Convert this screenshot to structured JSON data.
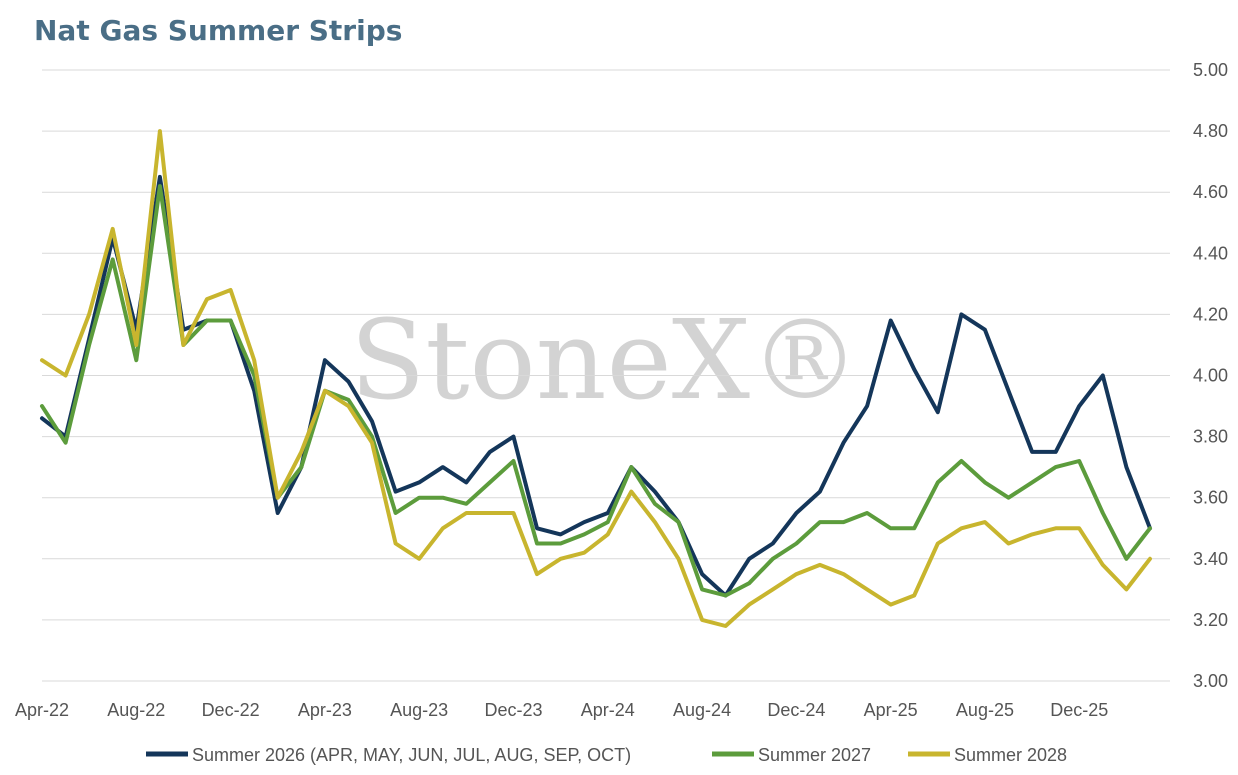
{
  "chart_data": {
    "type": "line",
    "title": "Nat Gas Summer Strips",
    "xlabel": "",
    "ylabel": "",
    "ylim": [
      3.0,
      5.0
    ],
    "y_ticks": [
      "3.00",
      "3.20",
      "3.40",
      "3.60",
      "3.80",
      "4.00",
      "4.20",
      "4.40",
      "4.60",
      "4.80",
      "5.00"
    ],
    "x_tick_labels": [
      "Apr-22",
      "Aug-22",
      "Dec-22",
      "Apr-23",
      "Aug-23",
      "Dec-23",
      "Apr-24",
      "Aug-24",
      "Dec-24",
      "Apr-25",
      "Aug-25",
      "Dec-25"
    ],
    "x_range": [
      "2022-04",
      "2026-03"
    ],
    "grid": "horizontal",
    "legend_position": "bottom",
    "watermark": "StoneX®",
    "x": [
      "2022-04",
      "2022-05",
      "2022-06",
      "2022-07",
      "2022-08",
      "2022-09",
      "2022-10",
      "2022-11",
      "2022-12",
      "2023-01",
      "2023-02",
      "2023-03",
      "2023-04",
      "2023-05",
      "2023-06",
      "2023-07",
      "2023-08",
      "2023-09",
      "2023-10",
      "2023-11",
      "2023-12",
      "2024-01",
      "2024-02",
      "2024-03",
      "2024-04",
      "2024-05",
      "2024-06",
      "2024-07",
      "2024-08",
      "2024-09",
      "2024-10",
      "2024-11",
      "2024-12",
      "2025-01",
      "2025-02",
      "2025-03",
      "2025-04",
      "2025-05",
      "2025-06",
      "2025-07",
      "2025-08",
      "2025-09",
      "2025-10",
      "2025-11",
      "2025-12",
      "2026-01",
      "2026-02",
      "2026-03"
    ],
    "series": [
      {
        "name": "Summer 2026 (APR, MAY, JUN, JUL, AUG, SEP, OCT)",
        "color": "#14365a",
        "values": [
          3.86,
          3.8,
          4.12,
          4.45,
          4.15,
          4.65,
          4.15,
          4.18,
          4.18,
          3.95,
          3.55,
          3.7,
          4.05,
          3.98,
          3.85,
          3.62,
          3.65,
          3.7,
          3.65,
          3.75,
          3.8,
          3.5,
          3.48,
          3.52,
          3.55,
          3.7,
          3.62,
          3.52,
          3.35,
          3.28,
          3.4,
          3.45,
          3.55,
          3.62,
          3.78,
          3.9,
          4.18,
          4.02,
          3.88,
          4.2,
          4.15,
          3.95,
          3.75,
          3.75,
          3.9,
          4.0,
          3.7,
          3.5
        ]
      },
      {
        "name": "Summer 2027",
        "color": "#5c9c3c",
        "values": [
          3.9,
          3.78,
          4.1,
          4.38,
          4.05,
          4.62,
          4.1,
          4.18,
          4.18,
          4.0,
          3.6,
          3.7,
          3.95,
          3.92,
          3.8,
          3.55,
          3.6,
          3.6,
          3.58,
          3.65,
          3.72,
          3.45,
          3.45,
          3.48,
          3.52,
          3.7,
          3.58,
          3.52,
          3.3,
          3.28,
          3.32,
          3.4,
          3.45,
          3.52,
          3.52,
          3.55,
          3.5,
          3.5,
          3.65,
          3.72,
          3.65,
          3.6,
          3.65,
          3.7,
          3.72,
          3.55,
          3.4,
          3.5
        ]
      },
      {
        "name": "Summer 2028",
        "color": "#c8b52e",
        "values": [
          4.05,
          4.0,
          4.2,
          4.48,
          4.1,
          4.8,
          4.1,
          4.25,
          4.28,
          4.05,
          3.6,
          3.75,
          3.95,
          3.9,
          3.78,
          3.45,
          3.4,
          3.5,
          3.55,
          3.55,
          3.55,
          3.35,
          3.4,
          3.42,
          3.48,
          3.62,
          3.52,
          3.4,
          3.2,
          3.18,
          3.25,
          3.3,
          3.35,
          3.38,
          3.35,
          3.3,
          3.25,
          3.28,
          3.45,
          3.5,
          3.52,
          3.45,
          3.48,
          3.5,
          3.5,
          3.38,
          3.3,
          3.4
        ]
      }
    ]
  }
}
